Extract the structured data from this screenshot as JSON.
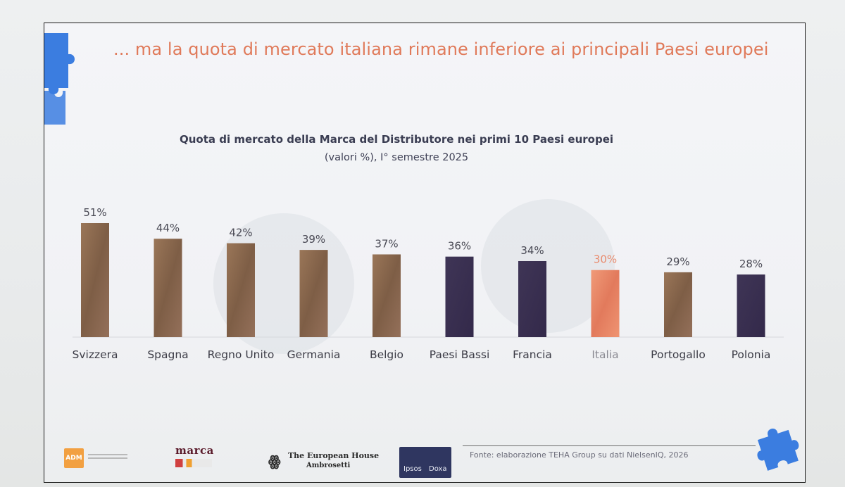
{
  "slide": {
    "title": "... ma la quota di mercato italiana rimane inferiore ai principali Paesi europei",
    "source": "Fonte: elaborazione TEHA Group su dati NielsenIQ, 2026"
  },
  "logos": {
    "adm": "ADM",
    "marca": "marca",
    "teh_line1": "The European House",
    "teh_line2": "Ambrosetti",
    "ipsos": "Ipsos",
    "doxa": "Doxa"
  },
  "colors": {
    "title": "#e07a5a",
    "bar_bronze": "#8f6a4c",
    "bar_purple": "#3a3050",
    "bar_italia": "#e9896b",
    "puzzle": "#3b7de0"
  },
  "icons": {
    "top_left": "puzzle-piece-icon",
    "bottom_right": "puzzle-piece-icon"
  },
  "chart_data": {
    "type": "bar",
    "title": "Quota di mercato della Marca del Distributore nei primi 10 Paesi europei",
    "subtitle": "(valori %), I° semestre 2025",
    "categories": [
      "Svizzera",
      "Spagna",
      "Regno Unito",
      "Germania",
      "Belgio",
      "Paesi Bassi",
      "Francia",
      "Italia",
      "Portogallo",
      "Polonia"
    ],
    "values": [
      51,
      44,
      42,
      39,
      37,
      36,
      34,
      30,
      29,
      28
    ],
    "value_labels": [
      "51%",
      "44%",
      "42%",
      "39%",
      "37%",
      "36%",
      "34%",
      "30%",
      "29%",
      "28%"
    ],
    "bar_styles": [
      "bronze",
      "bronze",
      "bronze",
      "bronze",
      "bronze",
      "purple",
      "purple",
      "italia",
      "bronze",
      "purple"
    ],
    "unit": "%",
    "ylim": [
      0,
      55
    ],
    "grid": false,
    "legend": "none"
  }
}
